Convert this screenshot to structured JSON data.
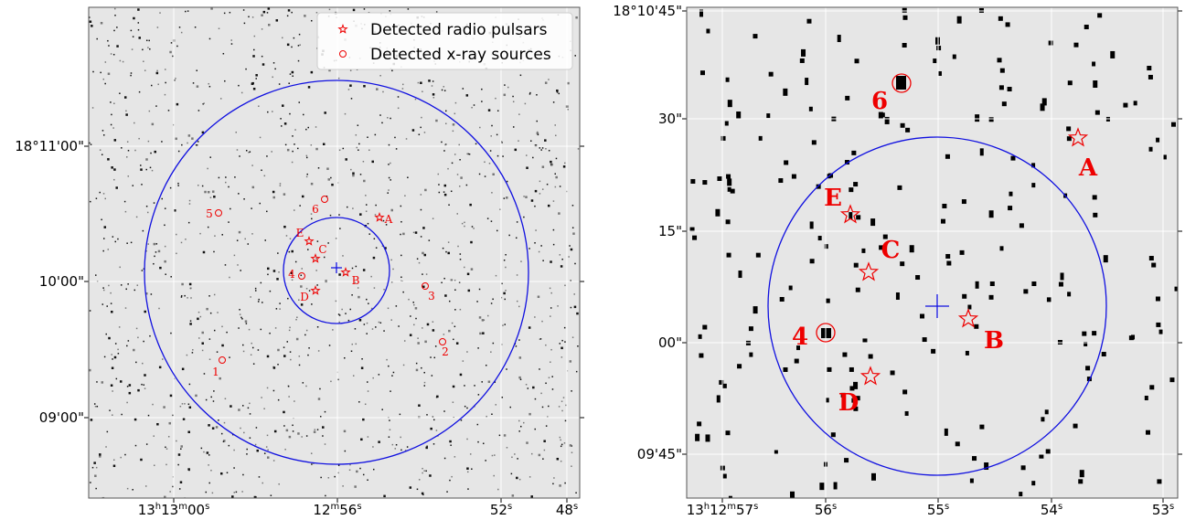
{
  "legend": [
    "Detected radio pulsars",
    "Detected x-ray sources"
  ],
  "left_panel": {
    "x_tick_labels": [
      [
        "13",
        "h",
        "13",
        "m",
        "00",
        "s"
      ],
      [
        "12",
        "m",
        "56",
        "s"
      ],
      [
        "52",
        "s"
      ],
      [
        "48",
        "s"
      ]
    ],
    "y_tick_labels": [
      "18°11'00\"",
      "10'00\"",
      "09'00\""
    ],
    "pulsars": [
      "A",
      "B",
      "C",
      "D",
      "E"
    ],
    "xray_sources": [
      "1",
      "2",
      "3",
      "4",
      "5",
      "6"
    ]
  },
  "right_panel": {
    "x_tick_labels": [
      [
        "13",
        "h",
        "12",
        "m",
        "57",
        "s"
      ],
      [
        "56",
        "s"
      ],
      [
        "55",
        "s"
      ],
      [
        "54",
        "s"
      ],
      [
        "53",
        "s"
      ]
    ],
    "y_tick_labels": [
      "18°10'45\"",
      "30\"",
      "15\"",
      "00\"",
      "09'45\""
    ],
    "pulsars": [
      "A",
      "B",
      "C",
      "D",
      "E"
    ],
    "xray_sources": [
      "4",
      "6"
    ]
  }
}
